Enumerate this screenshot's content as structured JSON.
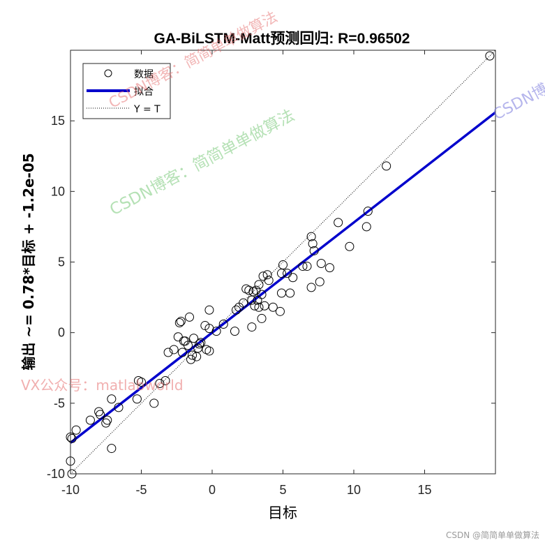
{
  "chart_data": {
    "type": "scatter",
    "title": "GA-BiLSTM-Matt预测回归: R=0.96502",
    "xlabel": "目标",
    "ylabel": "输出 ~= 0.78*目标 + -1.2e-05",
    "xlim": [
      -10,
      20
    ],
    "ylim": [
      -10,
      20
    ],
    "xticks": [
      -10,
      -5,
      0,
      5,
      10,
      15
    ],
    "yticks": [
      -10,
      -5,
      0,
      5,
      10,
      15
    ],
    "grid": false,
    "legend_position": "top-left",
    "legend": [
      "数据",
      "拟合",
      "Y = T"
    ],
    "fit": {
      "slope": 0.78,
      "intercept": -1.2e-05,
      "color": "#0000cc"
    },
    "identity_color": "#000000",
    "series": [
      {
        "name": "数据",
        "marker": "circle",
        "points": [
          [
            19.6,
            19.6
          ],
          [
            12.3,
            11.8
          ],
          [
            11.0,
            8.6
          ],
          [
            10.9,
            7.5
          ],
          [
            9.7,
            6.1
          ],
          [
            8.9,
            7.8
          ],
          [
            8.3,
            4.6
          ],
          [
            7.7,
            4.9
          ],
          [
            7.6,
            3.6
          ],
          [
            7.0,
            6.8
          ],
          [
            7.1,
            6.3
          ],
          [
            7.2,
            5.8
          ],
          [
            6.7,
            4.7
          ],
          [
            7.0,
            3.2
          ],
          [
            6.4,
            4.7
          ],
          [
            5.7,
            3.9
          ],
          [
            5.5,
            2.8
          ],
          [
            5.0,
            4.8
          ],
          [
            4.9,
            4.2
          ],
          [
            5.3,
            4.2
          ],
          [
            4.9,
            2.8
          ],
          [
            4.8,
            1.5
          ],
          [
            4.3,
            1.8
          ],
          [
            4.0,
            3.7
          ],
          [
            3.9,
            4.1
          ],
          [
            3.6,
            4.0
          ],
          [
            3.5,
            2.7
          ],
          [
            3.7,
            1.9
          ],
          [
            3.5,
            1.0
          ],
          [
            3.3,
            3.4
          ],
          [
            3.1,
            3.0
          ],
          [
            2.9,
            2.9
          ],
          [
            3.2,
            2.3
          ],
          [
            2.8,
            2.3
          ],
          [
            3.3,
            1.8
          ],
          [
            3.0,
            1.9
          ],
          [
            2.6,
            3.0
          ],
          [
            2.4,
            3.1
          ],
          [
            2.2,
            2.1
          ],
          [
            1.9,
            1.8
          ],
          [
            1.7,
            1.6
          ],
          [
            2.8,
            0.4
          ],
          [
            1.6,
            0.1
          ],
          [
            0.8,
            0.6
          ],
          [
            0.3,
            0.1
          ],
          [
            -0.2,
            1.6
          ],
          [
            -0.2,
            0.3
          ],
          [
            -0.4,
            -1.2
          ],
          [
            -0.2,
            -1.3
          ],
          [
            -0.5,
            0.5
          ],
          [
            -0.8,
            -0.7
          ],
          [
            -0.9,
            -0.8
          ],
          [
            -1.0,
            -1.1
          ],
          [
            -1.3,
            -0.4
          ],
          [
            -1.1,
            -1.7
          ],
          [
            -1.4,
            -1.6
          ],
          [
            -1.5,
            -1.9
          ],
          [
            -1.6,
            1.1
          ],
          [
            -1.7,
            -0.9
          ],
          [
            -1.9,
            -0.6
          ],
          [
            -2.0,
            -0.6
          ],
          [
            -2.1,
            -1.4
          ],
          [
            -2.3,
            0.7
          ],
          [
            -2.2,
            0.8
          ],
          [
            -2.4,
            -0.3
          ],
          [
            -2.7,
            -1.2
          ],
          [
            -3.1,
            -1.4
          ],
          [
            -3.3,
            -3.4
          ],
          [
            -3.7,
            -3.6
          ],
          [
            -4.1,
            -5.0
          ],
          [
            -5.0,
            -3.5
          ],
          [
            -5.2,
            -3.4
          ],
          [
            -5.3,
            -4.7
          ],
          [
            -6.6,
            -5.3
          ],
          [
            -7.1,
            -4.7
          ],
          [
            -7.1,
            -8.2
          ],
          [
            -7.5,
            -6.4
          ],
          [
            -7.4,
            -6.2
          ],
          [
            -7.9,
            -5.8
          ],
          [
            -8.0,
            -5.6
          ],
          [
            -8.6,
            -6.2
          ],
          [
            -9.6,
            -6.9
          ],
          [
            -10.0,
            -7.4
          ],
          [
            -9.9,
            -7.5
          ],
          [
            -10.0,
            -9.1
          ],
          [
            -9.9,
            -10.0
          ]
        ]
      }
    ]
  },
  "watermarks": {
    "green": "CSDN博客：简简单单做算法",
    "red_top": "CSDN博客：简简单单做算法",
    "blue": "CSDN博",
    "red_mid": "VX公众号：matlabworld",
    "footer": "CSDN @简简单单做算法"
  }
}
